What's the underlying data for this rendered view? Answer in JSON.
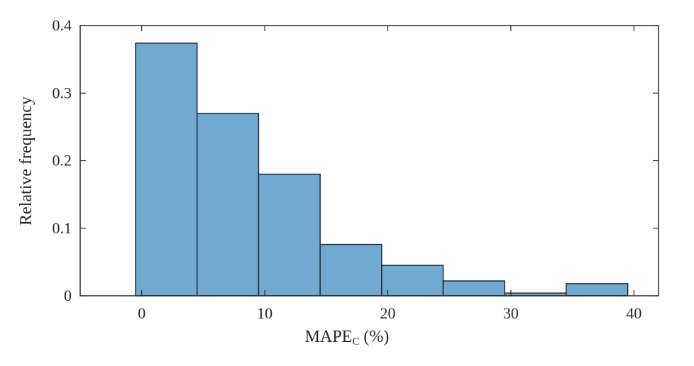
{
  "chart_data": {
    "type": "bar",
    "title": "",
    "xlabel_main": "MAPE",
    "xlabel_sub": "C",
    "xlabel_suffix": " (%)",
    "ylabel": "Relative frequency",
    "bin_edges": [
      -0.5,
      4.5,
      9.5,
      14.5,
      19.5,
      24.5,
      29.5,
      34.5,
      39.5
    ],
    "values": [
      0.374,
      0.27,
      0.18,
      0.076,
      0.045,
      0.022,
      0.004,
      0.018
    ],
    "xlim": [
      -5,
      42
    ],
    "ylim": [
      0,
      0.4
    ],
    "xticks": [
      0,
      10,
      20,
      30,
      40
    ],
    "yticks": [
      0,
      0.1,
      0.2,
      0.3,
      0.4
    ],
    "ytick_labels": [
      "0",
      "0.1",
      "0.2",
      "0.3",
      "0.4"
    ],
    "bar_color": "#72a9d0",
    "edge_color": "#1f2a36",
    "grid": false,
    "box": true
  }
}
